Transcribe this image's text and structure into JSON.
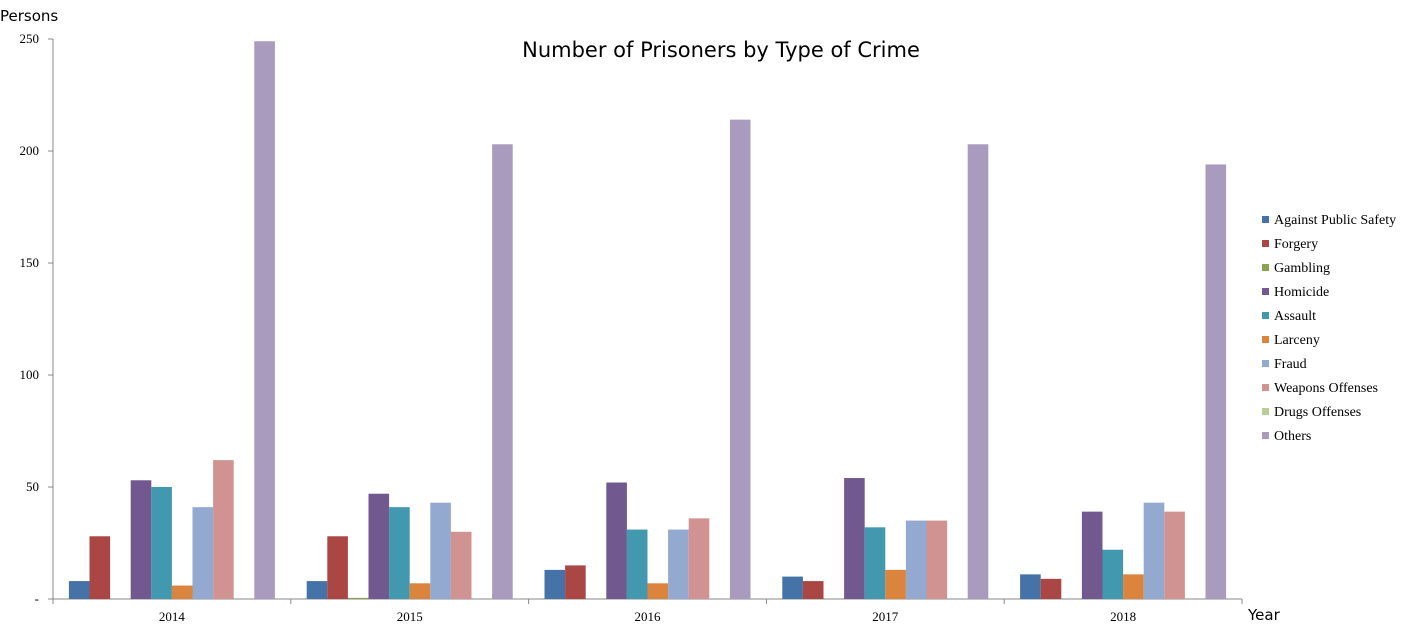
{
  "chart_data": {
    "type": "bar",
    "title": "Number of Prisoners by Type of Crime",
    "ylabel": "Persons",
    "xlabel": "Year",
    "ylim": [
      0,
      250
    ],
    "yticks": [
      0,
      50,
      100,
      150,
      200,
      250
    ],
    "yticks_labels": [
      "-",
      "50",
      "100",
      "150",
      "200",
      "250"
    ],
    "categories": [
      "2014",
      "2015",
      "2016",
      "2017",
      "2018"
    ],
    "legend_position": "right",
    "grid": false,
    "series": [
      {
        "name": "Against Public Safety",
        "color": "#4572A7",
        "values": [
          8,
          8,
          13,
          10,
          11
        ]
      },
      {
        "name": "Forgery",
        "color": "#AA4643",
        "values": [
          28,
          28,
          15,
          8,
          9
        ]
      },
      {
        "name": "Gambling",
        "color": "#89A54E",
        "values": [
          0,
          0.5,
          0,
          0,
          0
        ]
      },
      {
        "name": "Homicide",
        "color": "#71588F",
        "values": [
          53,
          47,
          52,
          54,
          39
        ]
      },
      {
        "name": "Assault",
        "color": "#4198AF",
        "values": [
          50,
          41,
          31,
          32,
          22
        ]
      },
      {
        "name": "Larceny",
        "color": "#DB843D",
        "values": [
          6,
          7,
          7,
          13,
          11
        ]
      },
      {
        "name": "Fraud",
        "color": "#93A9CF",
        "values": [
          41,
          43,
          31,
          35,
          43
        ]
      },
      {
        "name": "Weapons Offenses",
        "color": "#D19392",
        "values": [
          62,
          30,
          36,
          35,
          39
        ]
      },
      {
        "name": "Drugs Offenses",
        "color": "#B9CD96",
        "values": [
          0,
          0,
          0,
          0,
          0
        ]
      },
      {
        "name": "Others",
        "color": "#A99BBD",
        "values": [
          249,
          203,
          214,
          203,
          194
        ]
      }
    ]
  }
}
